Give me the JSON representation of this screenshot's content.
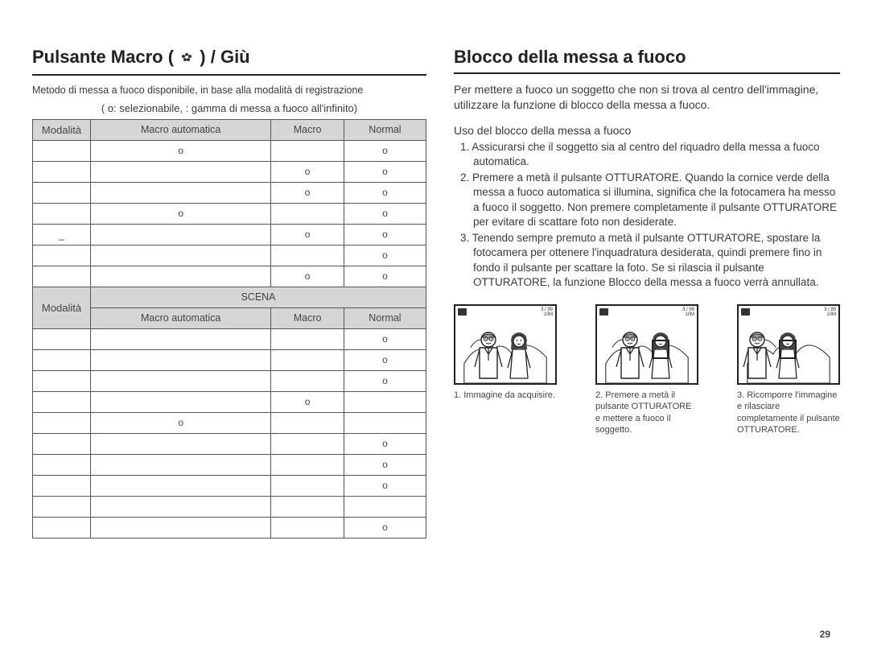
{
  "left": {
    "title_pre": "Pulsante Macro (",
    "title_icon_char": "e",
    "title_post": ") / Giù",
    "intro": "Metodo di messa a fuoco disponibile, in base alla modalità di registrazione",
    "legend": "( o: selezionabile,     : gamma di messa a fuoco all'infinito)",
    "table1": {
      "headers": [
        "Modalità",
        "Macro automatica",
        "Macro",
        "Normal"
      ],
      "rows": [
        [
          "",
          "o",
          "",
          "o"
        ],
        [
          "",
          "",
          "o",
          "o"
        ],
        [
          "",
          "",
          "o",
          "o"
        ],
        [
          "",
          "o",
          "",
          "o"
        ],
        [
          "_",
          "",
          "o",
          "o"
        ],
        [
          "",
          "",
          "",
          "o"
        ],
        [
          "",
          "",
          "o",
          "o"
        ]
      ]
    },
    "scena_label": "SCENA",
    "modalita_label": "Modalità",
    "table2": {
      "headers": [
        "Macro automatica",
        "Macro",
        "Normal"
      ],
      "rows": [
        [
          "",
          "",
          "o"
        ],
        [
          "",
          "",
          "o"
        ],
        [
          "",
          "",
          "o"
        ],
        [
          "",
          "o",
          ""
        ],
        [
          "o",
          "",
          ""
        ],
        [
          "",
          "",
          "o"
        ],
        [
          "",
          "",
          "o"
        ],
        [
          "",
          "",
          "o"
        ],
        [
          "",
          "",
          ""
        ],
        [
          "",
          "",
          "o"
        ]
      ]
    }
  },
  "right": {
    "title": "Blocco della messa a fuoco",
    "body": "Per mettere a fuoco un soggetto che non si trova al centro dell'immagine, utilizzare la funzione di blocco della messa a fuoco.",
    "sub": "Uso del blocco della messa a fuoco",
    "steps": [
      "1. Assicurarsi che il soggetto sia al centro del riquadro della messa a fuoco automatica.",
      "2. Premere a metà il pulsante OTTURATORE. Quando la cornice verde della messa a fuoco automatica si illumina, significa che la fotocamera ha messo a fuoco il soggetto. Non premere completamente il pulsante OTTURATORE per evitare di scattare foto non desiderate.",
      "3. Tenendo sempre premuto a metà il pulsante OTTURATORE, spostare la fotocamera per ottenere l'inquadratura desiderata, quindi premere fino in fondo il pulsante per scattare la foto. Se si rilascia il pulsante OTTURATORE, la funzione Blocco della messa a fuoco verrà annullata."
    ],
    "figs": [
      {
        "caption": "1. Immagine da acquisire.",
        "focus": null
      },
      {
        "caption": "2. Premere a metà il pulsante OTTURATORE e mettere a fuoco il soggetto.",
        "focus": "center"
      },
      {
        "caption": "3. Ricomporre l'immagine e rilasciare completamente il pulsante OTTURATORE.",
        "focus": "left"
      }
    ]
  },
  "page_number": "29",
  "colors": {
    "header_bg": "#d6d6d6",
    "border": "#555555",
    "text": "#3a3a3a"
  }
}
